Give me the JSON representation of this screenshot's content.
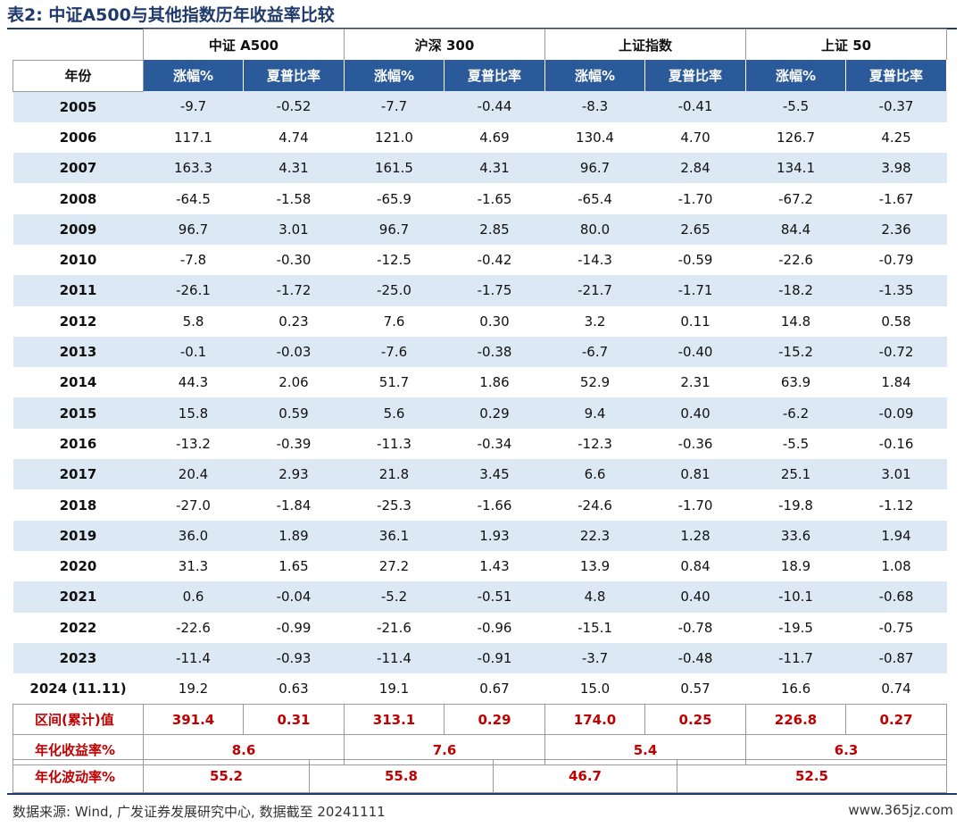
{
  "title": "表2: 中证A500与其他指数历年收益率比较",
  "header": {
    "indices": [
      "中证 A500",
      "沪深 300",
      "上证指数",
      "上证 50"
    ],
    "year_label": "年份",
    "sub_labels": [
      "涨幅%",
      "夏普比率"
    ]
  },
  "rows": [
    {
      "year": "2005",
      "v": [
        "-9.7",
        "-0.52",
        "-7.7",
        "-0.44",
        "-8.3",
        "-0.41",
        "-5.5",
        "-0.37"
      ]
    },
    {
      "year": "2006",
      "v": [
        "117.1",
        "4.74",
        "121.0",
        "4.69",
        "130.4",
        "4.70",
        "126.7",
        "4.25"
      ]
    },
    {
      "year": "2007",
      "v": [
        "163.3",
        "4.31",
        "161.5",
        "4.31",
        "96.7",
        "2.84",
        "134.1",
        "3.98"
      ]
    },
    {
      "year": "2008",
      "v": [
        "-64.5",
        "-1.58",
        "-65.9",
        "-1.65",
        "-65.4",
        "-1.70",
        "-67.2",
        "-1.67"
      ]
    },
    {
      "year": "2009",
      "v": [
        "96.7",
        "3.01",
        "96.7",
        "2.85",
        "80.0",
        "2.65",
        "84.4",
        "2.36"
      ]
    },
    {
      "year": "2010",
      "v": [
        "-7.8",
        "-0.30",
        "-12.5",
        "-0.42",
        "-14.3",
        "-0.59",
        "-22.6",
        "-0.79"
      ]
    },
    {
      "year": "2011",
      "v": [
        "-26.1",
        "-1.72",
        "-25.0",
        "-1.75",
        "-21.7",
        "-1.71",
        "-18.2",
        "-1.35"
      ]
    },
    {
      "year": "2012",
      "v": [
        "5.8",
        "0.23",
        "7.6",
        "0.30",
        "3.2",
        "0.11",
        "14.8",
        "0.58"
      ]
    },
    {
      "year": "2013",
      "v": [
        "-0.1",
        "-0.03",
        "-7.6",
        "-0.38",
        "-6.7",
        "-0.40",
        "-15.2",
        "-0.72"
      ]
    },
    {
      "year": "2014",
      "v": [
        "44.3",
        "2.06",
        "51.7",
        "1.86",
        "52.9",
        "2.31",
        "63.9",
        "1.84"
      ]
    },
    {
      "year": "2015",
      "v": [
        "15.8",
        "0.59",
        "5.6",
        "0.29",
        "9.4",
        "0.40",
        "-6.2",
        "-0.09"
      ]
    },
    {
      "year": "2016",
      "v": [
        "-13.2",
        "-0.39",
        "-11.3",
        "-0.34",
        "-12.3",
        "-0.36",
        "-5.5",
        "-0.16"
      ]
    },
    {
      "year": "2017",
      "v": [
        "20.4",
        "2.93",
        "21.8",
        "3.45",
        "6.6",
        "0.81",
        "25.1",
        "3.01"
      ]
    },
    {
      "year": "2018",
      "v": [
        "-27.0",
        "-1.84",
        "-25.3",
        "-1.66",
        "-24.6",
        "-1.70",
        "-19.8",
        "-1.12"
      ]
    },
    {
      "year": "2019",
      "v": [
        "36.0",
        "1.89",
        "36.1",
        "1.93",
        "22.3",
        "1.28",
        "33.6",
        "1.94"
      ]
    },
    {
      "year": "2020",
      "v": [
        "31.3",
        "1.65",
        "27.2",
        "1.43",
        "13.9",
        "0.84",
        "18.9",
        "1.08"
      ]
    },
    {
      "year": "2021",
      "v": [
        "0.6",
        "-0.04",
        "-5.2",
        "-0.51",
        "4.8",
        "0.40",
        "-10.1",
        "-0.68"
      ]
    },
    {
      "year": "2022",
      "v": [
        "-22.6",
        "-0.99",
        "-21.6",
        "-0.96",
        "-15.1",
        "-0.78",
        "-19.5",
        "-0.75"
      ]
    },
    {
      "year": "2023",
      "v": [
        "-11.4",
        "-0.93",
        "-11.4",
        "-0.91",
        "-3.7",
        "-0.48",
        "-11.7",
        "-0.87"
      ]
    },
    {
      "year": "2024 (11.11)",
      "v": [
        "19.2",
        "0.63",
        "19.1",
        "0.67",
        "15.0",
        "0.57",
        "16.6",
        "0.74"
      ]
    }
  ],
  "cumulative": {
    "label": "区间(累计)值",
    "v": [
      "391.4",
      "0.31",
      "313.1",
      "0.29",
      "174.0",
      "0.25",
      "226.8",
      "0.27"
    ]
  },
  "annualized_return": {
    "label": "年化收益率%",
    "v": [
      "8.6",
      "7.6",
      "5.4",
      "6.3"
    ]
  },
  "annualized_vol": {
    "label": "年化波动率%",
    "v": [
      "55.2",
      "55.8",
      "46.7",
      "52.5"
    ]
  },
  "source": "数据来源: Wind, 广发证券发展研究中心, 数据截至 20241111",
  "watermark": "www.365jz.com",
  "colors": {
    "header_blue": "#2a5a9a",
    "stripe": "#dce9f5",
    "highlight_red": "#c00000",
    "title_navy": "#1f3a6b"
  }
}
